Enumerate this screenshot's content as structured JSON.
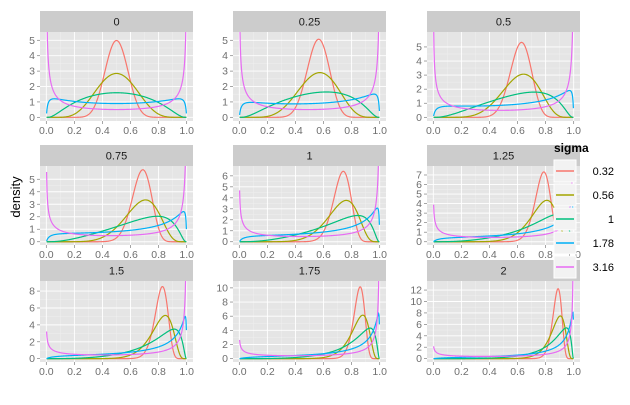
{
  "chart_data": {
    "type": "line",
    "chart_kind": "faceted density curves",
    "ylabel": "density",
    "xlabel": "",
    "x_range": [
      0,
      1
    ],
    "x_ticks": [
      "0.0",
      "0.2",
      "0.4",
      "0.6",
      "0.8",
      "1.0"
    ],
    "legend": {
      "title": "sigma",
      "placement": "right",
      "entries": [
        {
          "label": "0.32",
          "color": "#F8766D"
        },
        {
          "label": "0.56",
          "color": "#A3A500"
        },
        {
          "label": "1",
          "color": "#00BF7D"
        },
        {
          "label": "1.78",
          "color": "#00B0F6"
        },
        {
          "label": "3.16",
          "color": "#E76BF3"
        }
      ]
    },
    "series_params": {
      "sigma": [
        0.32,
        0.56,
        1.0,
        1.78,
        3.16
      ],
      "distribution": "logit-normal",
      "mu_by_facet": [
        0,
        0.25,
        0.5,
        0.75,
        1,
        1.25,
        1.5,
        1.75,
        2
      ]
    },
    "facets": [
      {
        "title": "0",
        "ylim": [
          0,
          5.3
        ],
        "y_ticks": [
          0,
          1,
          2,
          3,
          4,
          5
        ]
      },
      {
        "title": "0.25",
        "ylim": [
          0,
          5.3
        ],
        "y_ticks": [
          0,
          1,
          2,
          3,
          4,
          5
        ]
      },
      {
        "title": "0.5",
        "ylim": [
          0,
          5.8
        ],
        "y_ticks": [
          0,
          1,
          2,
          3,
          4,
          5
        ]
      },
      {
        "title": "0.75",
        "ylim": [
          0,
          5.8
        ],
        "y_ticks": [
          0,
          1,
          2,
          3,
          4,
          5
        ]
      },
      {
        "title": "1",
        "ylim": [
          0,
          6.6
        ],
        "y_ticks": [
          0,
          1,
          2,
          3,
          4,
          5,
          6
        ]
      },
      {
        "title": "1.25",
        "ylim": [
          0,
          7.6
        ],
        "y_ticks": [
          0,
          1,
          2,
          3,
          4,
          5,
          6,
          7
        ]
      },
      {
        "title": "1.5",
        "ylim": [
          0,
          8.8
        ],
        "y_ticks": [
          0,
          2,
          4,
          6,
          8
        ]
      },
      {
        "title": "1.75",
        "ylim": [
          0,
          10.5
        ],
        "y_ticks": [
          0,
          2,
          4,
          6,
          8,
          10
        ]
      },
      {
        "title": "2",
        "ylim": [
          0,
          13.0
        ],
        "y_ticks": [
          0,
          2,
          4,
          6,
          8,
          10,
          12
        ]
      }
    ]
  }
}
